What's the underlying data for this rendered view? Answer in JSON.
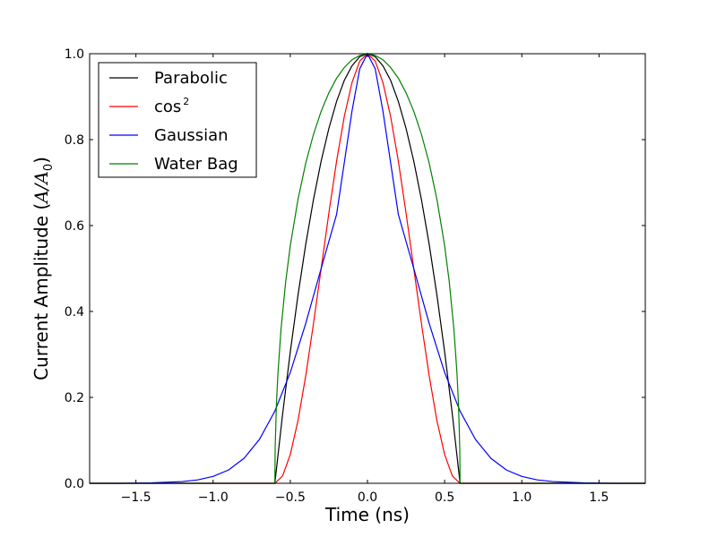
{
  "chart_data": {
    "type": "line",
    "title": "",
    "xlabel": "Time (ns)",
    "ylabel": "Current Amplitude (A/A₀)",
    "ylabel_parts": {
      "prefix": "Current Amplitude (",
      "var": "A",
      "sep": "/",
      "var2": "A",
      "sub": "0",
      "suffix": ")"
    },
    "xlim": [
      -1.8,
      1.8
    ],
    "ylim": [
      0.0,
      1.0
    ],
    "xticks": [
      -1.5,
      -1.0,
      -0.5,
      0.0,
      0.5,
      1.0,
      1.5
    ],
    "xtick_labels": [
      "−1.5",
      "−1.0",
      "−0.5",
      "0.0",
      "0.5",
      "1.0",
      "1.5"
    ],
    "yticks": [
      0.0,
      0.2,
      0.4,
      0.6,
      0.8,
      1.0
    ],
    "ytick_labels": [
      "0.0",
      "0.2",
      "0.4",
      "0.6",
      "0.8",
      "1.0"
    ],
    "grid": false,
    "legend_position": "top-left",
    "series": [
      {
        "name": "Parabolic",
        "color": "#000000",
        "x": [
          -1.8,
          -0.6,
          -0.55,
          -0.5,
          -0.45,
          -0.4,
          -0.35,
          -0.3,
          -0.25,
          -0.2,
          -0.15,
          -0.1,
          -0.05,
          0.0,
          0.05,
          0.1,
          0.15,
          0.2,
          0.25,
          0.3,
          0.35,
          0.4,
          0.45,
          0.5,
          0.55,
          0.6,
          1.8
        ],
        "y": [
          0.0,
          0.0,
          0.16,
          0.306,
          0.438,
          0.556,
          0.66,
          0.75,
          0.826,
          0.889,
          0.938,
          0.972,
          0.993,
          1.0,
          0.993,
          0.972,
          0.938,
          0.889,
          0.826,
          0.75,
          0.66,
          0.556,
          0.438,
          0.306,
          0.16,
          0.0,
          0.0
        ]
      },
      {
        "name": "cos",
        "name_sup": "2",
        "color": "#ff0000",
        "x": [
          -1.8,
          -0.6,
          -0.55,
          -0.5,
          -0.45,
          -0.4,
          -0.35,
          -0.3,
          -0.25,
          -0.2,
          -0.15,
          -0.1,
          -0.05,
          0.0,
          0.05,
          0.1,
          0.15,
          0.2,
          0.25,
          0.3,
          0.35,
          0.4,
          0.45,
          0.5,
          0.55,
          0.6,
          1.8
        ],
        "y": [
          0.0,
          0.0,
          0.017,
          0.067,
          0.146,
          0.25,
          0.371,
          0.5,
          0.629,
          0.75,
          0.854,
          0.933,
          0.983,
          1.0,
          0.983,
          0.933,
          0.854,
          0.75,
          0.629,
          0.5,
          0.371,
          0.25,
          0.146,
          0.067,
          0.017,
          0.0,
          0.0
        ]
      },
      {
        "name": "Gaussian",
        "color": "#0000ff",
        "x": [
          -1.8,
          -1.6,
          -1.4,
          -1.2,
          -1.1,
          -1.0,
          -0.9,
          -0.8,
          -0.7,
          -0.6,
          -0.5,
          -0.4,
          -0.3,
          -0.2,
          -0.1,
          -0.05,
          0.0,
          0.05,
          0.1,
          0.2,
          0.3,
          0.4,
          0.5,
          0.6,
          0.7,
          0.8,
          0.9,
          1.0,
          1.1,
          1.2,
          1.4,
          1.6,
          1.8
        ],
        "y": [
          0.0,
          0.0,
          0.001,
          0.004,
          0.008,
          0.016,
          0.031,
          0.058,
          0.102,
          0.168,
          0.258,
          0.372,
          0.5,
          0.626,
          0.867,
          0.965,
          1.0,
          0.965,
          0.867,
          0.626,
          0.5,
          0.372,
          0.258,
          0.168,
          0.102,
          0.058,
          0.031,
          0.016,
          0.008,
          0.004,
          0.001,
          0.0,
          0.0
        ]
      },
      {
        "name": "Water Bag",
        "color": "#008000",
        "x": [
          -1.8,
          -0.6,
          -0.598,
          -0.59,
          -0.58,
          -0.56,
          -0.53,
          -0.5,
          -0.45,
          -0.4,
          -0.35,
          -0.3,
          -0.25,
          -0.2,
          -0.15,
          -0.1,
          -0.05,
          0.0,
          0.05,
          0.1,
          0.15,
          0.2,
          0.25,
          0.3,
          0.35,
          0.4,
          0.45,
          0.5,
          0.53,
          0.56,
          0.58,
          0.59,
          0.598,
          0.6,
          1.8
        ],
        "y": [
          0.0,
          0.0,
          0.082,
          0.182,
          0.256,
          0.359,
          0.469,
          0.553,
          0.661,
          0.745,
          0.812,
          0.866,
          0.909,
          0.943,
          0.968,
          0.986,
          0.996,
          1.0,
          0.996,
          0.986,
          0.968,
          0.943,
          0.909,
          0.866,
          0.812,
          0.745,
          0.661,
          0.553,
          0.469,
          0.359,
          0.256,
          0.182,
          0.082,
          0.0,
          0.0
        ]
      }
    ]
  }
}
